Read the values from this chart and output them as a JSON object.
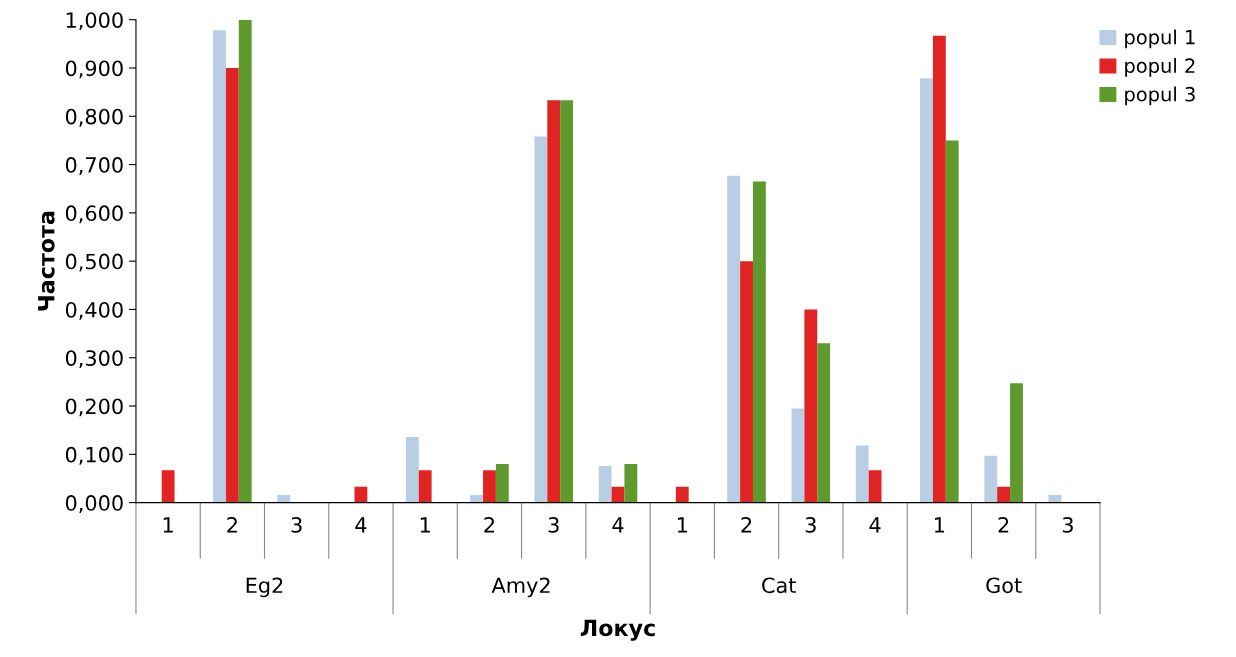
{
  "chart_data": {
    "type": "bar",
    "categories": [
      "1",
      "2",
      "3",
      "4",
      "1",
      "2",
      "3",
      "4",
      "1",
      "2",
      "3",
      "4",
      "1",
      "2",
      "3"
    ],
    "series": [
      {
        "name": "popul 1",
        "color": "#b9cde5",
        "values": [
          0,
          0.978,
          0.016,
          0,
          0.136,
          0.016,
          0.758,
          0.076,
          0,
          0.677,
          0.195,
          0.118,
          0.879,
          0.097,
          0.016
        ]
      },
      {
        "name": "popul 2",
        "color": "#e02424",
        "values": [
          0.067,
          0.9,
          0,
          0.033,
          0.067,
          0.067,
          0.833,
          0.033,
          0.033,
          0.5,
          0.4,
          0.067,
          0.967,
          0.033,
          0
        ]
      },
      {
        "name": "popul 3",
        "color": "#5e9a2c",
        "values": [
          0,
          1.0,
          0,
          0,
          0,
          0.08,
          0.833,
          0.08,
          0,
          0.665,
          0.33,
          0,
          0.75,
          0.247,
          0
        ]
      }
    ],
    "annotations": [
      "Eg2",
      "Amy2",
      "Cat",
      "Got"
    ],
    "xlabel": "Локус",
    "ylabel": "Частота",
    "ylim": [
      0,
      1.0
    ],
    "yticks": [
      {
        "value": 0,
        "label": "0,000"
      },
      {
        "value": 0.1,
        "label": "0,100"
      },
      {
        "value": 0.2,
        "label": "0,200"
      },
      {
        "value": 0.3,
        "label": "0,300"
      },
      {
        "value": 0.4,
        "label": "0,400"
      },
      {
        "value": 0.5,
        "label": "0,500"
      },
      {
        "value": 0.6,
        "label": "0,600"
      },
      {
        "value": 0.7,
        "label": "0,700"
      },
      {
        "value": 0.8,
        "label": "0,800"
      },
      {
        "value": 0.9,
        "label": "0,900"
      },
      {
        "value": 1.0,
        "label": "1,000"
      }
    ],
    "grid": false,
    "legend": "top right"
  }
}
